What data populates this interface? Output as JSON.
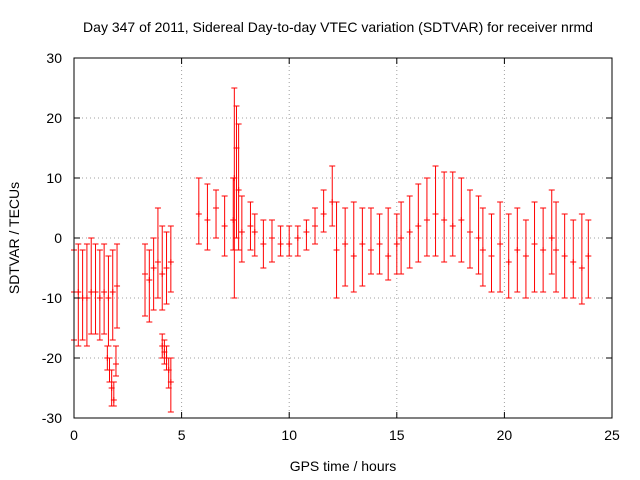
{
  "chart_data": {
    "type": "scatter",
    "title": "Day 347 of 2011, Sidereal Day-to-day VTEC variation (SDTVAR) for receiver nrmd",
    "xlabel": "GPS time / hours",
    "ylabel": "SDTVAR / TECUs",
    "xlim": [
      0,
      25
    ],
    "ylim": [
      -30,
      30
    ],
    "xticks": [
      0,
      5,
      10,
      15,
      20,
      25
    ],
    "yticks": [
      -30,
      -20,
      -10,
      0,
      10,
      20,
      30
    ],
    "grid": true,
    "marker": "plus-with-errorbars",
    "color": "#ff0000",
    "segments": [
      {
        "x": [
          0.0,
          0.2,
          0.4,
          0.6,
          0.8,
          1.0,
          1.2,
          1.4,
          1.6,
          1.8,
          2.0
        ],
        "center": [
          -9,
          -9,
          -10,
          -10,
          -9,
          -9,
          -10,
          -9,
          -10,
          -9,
          -8
        ],
        "low": [
          -17,
          -18,
          -17,
          -18,
          -16,
          -16,
          -17,
          -16,
          -18,
          -17,
          -15
        ],
        "high": [
          -2,
          -1,
          -2,
          -1,
          0,
          -1,
          -2,
          -1,
          -3,
          -2,
          -1
        ]
      },
      {
        "x": [
          1.55,
          1.65,
          1.75,
          1.85,
          1.95
        ],
        "center": [
          -20,
          -22,
          -25,
          -27,
          -21
        ],
        "low": [
          -22,
          -24,
          -28,
          -28,
          -23
        ],
        "high": [
          -18,
          -20,
          -22,
          -24,
          -18
        ]
      },
      {
        "x": [
          3.3,
          3.5,
          3.7,
          3.9,
          4.1,
          4.3,
          4.5
        ],
        "center": [
          -6,
          -7,
          -5,
          -4,
          -6,
          -5,
          -4
        ],
        "low": [
          -13,
          -14,
          -12,
          -10,
          -12,
          -11,
          -9
        ],
        "high": [
          -1,
          -2,
          0,
          5,
          2,
          1,
          2
        ]
      },
      {
        "x": [
          4.1,
          4.2,
          4.3,
          4.4,
          4.5
        ],
        "center": [
          -18,
          -19,
          -20,
          -22,
          -24
        ],
        "low": [
          -20,
          -21,
          -22,
          -25,
          -29
        ],
        "high": [
          -16,
          -17,
          -18,
          -20,
          -20
        ]
      },
      {
        "x": [
          5.8,
          6.2,
          6.6,
          7.0,
          7.4,
          7.8,
          8.2
        ],
        "center": [
          4,
          3,
          5,
          2,
          3,
          1,
          2
        ],
        "low": [
          -1,
          -2,
          0,
          -3,
          -2,
          -4,
          -2
        ],
        "high": [
          10,
          9,
          8,
          7,
          10,
          7,
          6
        ]
      },
      {
        "x": [
          7.45,
          7.55,
          7.65
        ],
        "center": [
          10,
          15,
          8
        ],
        "low": [
          -10,
          0,
          -2
        ],
        "high": [
          25,
          22,
          19
        ]
      },
      {
        "x": [
          8.4,
          8.8,
          9.2,
          9.6,
          10.0,
          10.4,
          10.8,
          11.2,
          11.6,
          12.0
        ],
        "center": [
          1,
          -1,
          0,
          -1,
          -1,
          0,
          1,
          2,
          4,
          6
        ],
        "low": [
          -3,
          -5,
          -4,
          -3,
          -3,
          -3,
          -2,
          -1,
          1,
          2
        ],
        "high": [
          4,
          3,
          3,
          2,
          2,
          2,
          3,
          5,
          8,
          12
        ]
      },
      {
        "x": [
          12.2,
          12.6,
          13.0,
          13.4,
          13.8,
          14.2,
          14.6,
          15.0
        ],
        "center": [
          -2,
          -1,
          -3,
          -1,
          -2,
          -1,
          -3,
          -1
        ],
        "low": [
          -10,
          -8,
          -9,
          -8,
          -6,
          -6,
          -7,
          -6
        ],
        "high": [
          6,
          5,
          6,
          5,
          5,
          4,
          5,
          4
        ]
      },
      {
        "x": [
          15.2,
          15.6,
          16.0,
          16.4,
          16.8,
          17.2,
          17.6,
          18.0,
          18.4,
          18.8
        ],
        "center": [
          0,
          1,
          2,
          3,
          4,
          3,
          2,
          3,
          1,
          0
        ],
        "low": [
          -6,
          -5,
          -4,
          -3,
          -3,
          -4,
          -3,
          -4,
          -5,
          -6
        ],
        "high": [
          6,
          7,
          9,
          10,
          12,
          11,
          11,
          10,
          8,
          7
        ]
      },
      {
        "x": [
          19.0,
          19.4,
          19.8,
          20.2,
          20.6,
          21.0,
          21.4,
          21.8,
          22.2
        ],
        "center": [
          -2,
          -3,
          -1,
          -4,
          -2,
          -3,
          -1,
          -2,
          0
        ],
        "low": [
          -8,
          -9,
          -9,
          -10,
          -9,
          -10,
          -9,
          -9,
          -6
        ],
        "high": [
          5,
          4,
          6,
          4,
          5,
          3,
          6,
          5,
          8
        ]
      },
      {
        "x": [
          22.4,
          22.8,
          23.2,
          23.6,
          23.9
        ],
        "center": [
          -2,
          -3,
          -4,
          -5,
          -3
        ],
        "low": [
          -9,
          -10,
          -10,
          -11,
          -10
        ],
        "high": [
          6,
          4,
          3,
          4,
          3
        ]
      }
    ]
  }
}
